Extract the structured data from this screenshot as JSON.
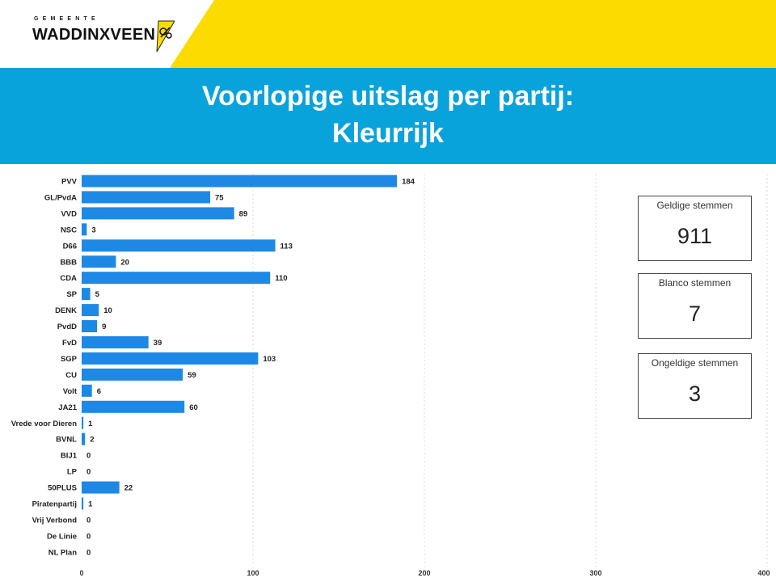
{
  "header": {
    "logo_small": "GEMEENTE",
    "logo_main": "WADDINXVEEN",
    "brand_yellow": "#fcdc00",
    "logo_icon": "municipal-coat-of-arms-icon"
  },
  "title": {
    "line1": "Voorlopige uitslag per partij:",
    "line2": "Kleurrijk",
    "bar_color": "#09a3db"
  },
  "kpis": {
    "valid": {
      "label": "Geldige stemmen",
      "value": "911"
    },
    "blank": {
      "label": "Blanco stemmen",
      "value": "7"
    },
    "invalid": {
      "label": "Ongeldige stemmen",
      "value": "3"
    }
  },
  "chart_data": {
    "type": "bar",
    "orientation": "horizontal",
    "categories": [
      "PVV",
      "GL/PvdA",
      "VVD",
      "NSC",
      "D66",
      "BBB",
      "CDA",
      "SP",
      "DENK",
      "PvdD",
      "FvD",
      "SGP",
      "CU",
      "Volt",
      "JA21",
      "Vrede voor Dieren",
      "BVNL",
      "BIJ1",
      "LP",
      "50PLUS",
      "Piratenpartij",
      "Vrij Verbond",
      "De Linie",
      "NL Plan"
    ],
    "values": [
      184,
      75,
      89,
      3,
      113,
      20,
      110,
      5,
      10,
      9,
      39,
      103,
      59,
      6,
      60,
      1,
      2,
      0,
      0,
      22,
      1,
      0,
      0,
      0
    ],
    "xlim": [
      0,
      400
    ],
    "xticks": [
      0,
      100,
      200,
      300,
      400
    ],
    "grid": true,
    "bar_color": "#1e88e5",
    "data_labels": true
  }
}
